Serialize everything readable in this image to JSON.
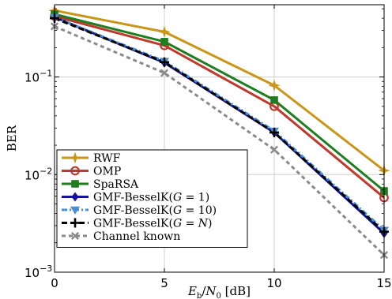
{
  "chart_data": {
    "type": "line",
    "x": [
      0,
      5,
      10,
      15
    ],
    "xlabel": "E_b/N_0 [dB]",
    "ylabel": "BER",
    "xlim": [
      0,
      15
    ],
    "ylim": [
      0.001,
      0.55
    ],
    "yscale": "log",
    "xticks": [
      0,
      5,
      10,
      15
    ],
    "yticks": [
      {
        "value": 0.1,
        "base": "10",
        "exp": "−1"
      },
      {
        "value": 0.01,
        "base": "10",
        "exp": "−2"
      },
      {
        "value": 0.001,
        "base": "10",
        "exp": "−3"
      }
    ],
    "grid": true,
    "legend_position": "bottom-left",
    "series": [
      {
        "name": "RWF",
        "color": "#c9961a",
        "marker": "star",
        "dash": "solid",
        "values": [
          0.48,
          0.29,
          0.082,
          0.011
        ]
      },
      {
        "name": "OMP",
        "color": "#c0392b",
        "marker": "circle",
        "dash": "solid",
        "values": [
          0.42,
          0.21,
          0.05,
          0.0058
        ]
      },
      {
        "name": "SpaRSA",
        "color": "#1e7d1e",
        "marker": "square",
        "dash": "solid",
        "values": [
          0.44,
          0.23,
          0.058,
          0.0068
        ]
      },
      {
        "name": "GMF-BesselK(G = 1)",
        "name_parts": [
          "GMF-BesselK(",
          "G",
          " = 1)"
        ],
        "color": "#15159a",
        "marker": "diamond",
        "dash": "solid",
        "values": [
          0.41,
          0.14,
          0.027,
          0.0025
        ]
      },
      {
        "name": "GMF-BesselK(G = 10)",
        "name_parts": [
          "GMF-BesselK(",
          "G",
          " = 10)"
        ],
        "color": "#4a90d0",
        "marker": "triangle-down",
        "dash": "dashdot",
        "values": [
          0.41,
          0.145,
          0.028,
          0.0027
        ]
      },
      {
        "name": "GMF-BesselK(G = N)",
        "name_parts": [
          "GMF-BesselK(",
          "G",
          " = ",
          "N",
          ")"
        ],
        "color": "#000000",
        "marker": "plus",
        "dash": "dashed",
        "values": [
          0.4,
          0.142,
          0.027,
          0.0026
        ]
      },
      {
        "name": "Channel known",
        "color": "#8a8a8a",
        "marker": "x",
        "dash": "dotted",
        "values": [
          0.33,
          0.11,
          0.018,
          0.0015
        ]
      }
    ]
  }
}
